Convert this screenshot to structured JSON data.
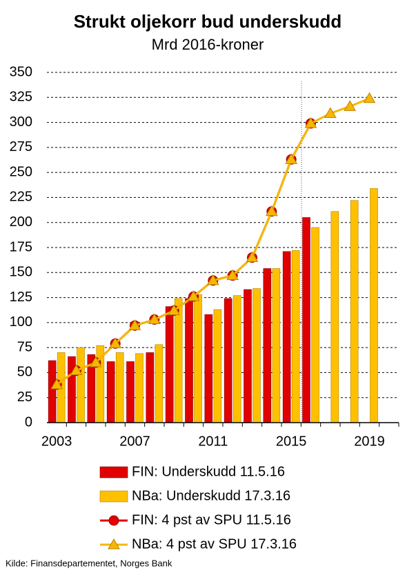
{
  "chart_data": {
    "type": "combo",
    "title": "Strukt oljekorr bud underskudd",
    "subtitle": "Mrd 2016-kroner",
    "x": [
      2003,
      2004,
      2005,
      2006,
      2007,
      2008,
      2009,
      2010,
      2011,
      2012,
      2013,
      2014,
      2015,
      2016,
      2017,
      2018,
      2019,
      2020
    ],
    "xlim": [
      2002.5,
      2020.5
    ],
    "xticks": [
      2003,
      2007,
      2011,
      2015,
      2019
    ],
    "ylim": [
      0,
      350
    ],
    "yticks": [
      0,
      25,
      50,
      75,
      100,
      125,
      150,
      175,
      200,
      225,
      250,
      275,
      300,
      325,
      350
    ],
    "grid": true,
    "series": [
      {
        "name": "FIN: Underskudd 11.5.16",
        "type": "bar",
        "color": "#e00000",
        "values": [
          62,
          66,
          68,
          61,
          61,
          70,
          116,
          124,
          108,
          124,
          133,
          154,
          171,
          205,
          null,
          null,
          null,
          null
        ]
      },
      {
        "name": "NBa: Underskudd 17.3.16",
        "type": "bar",
        "color": "#ffc000",
        "values": [
          70,
          75,
          77,
          70,
          69,
          78,
          124,
          128,
          113,
          127,
          134,
          154,
          172,
          195,
          211,
          222,
          234,
          null
        ]
      },
      {
        "name": "FIN: 4 pst av SPU 11.5.16",
        "type": "line",
        "marker": "circle",
        "color": "#e00000",
        "values": [
          38,
          52,
          60,
          79,
          97,
          103,
          112,
          126,
          142,
          147,
          165,
          211,
          263,
          299,
          null,
          null,
          null,
          null
        ]
      },
      {
        "name": "NBa: 4 pst av SPU 17.3.16",
        "type": "line",
        "marker": "triangle",
        "color": "#f5b800",
        "values": [
          38,
          52,
          60,
          79,
          97,
          103,
          112,
          126,
          142,
          147,
          165,
          211,
          263,
          299,
          309,
          316,
          324,
          null
        ]
      }
    ],
    "source": "Kilde: Finansdepartementet,  Norges Bank"
  }
}
